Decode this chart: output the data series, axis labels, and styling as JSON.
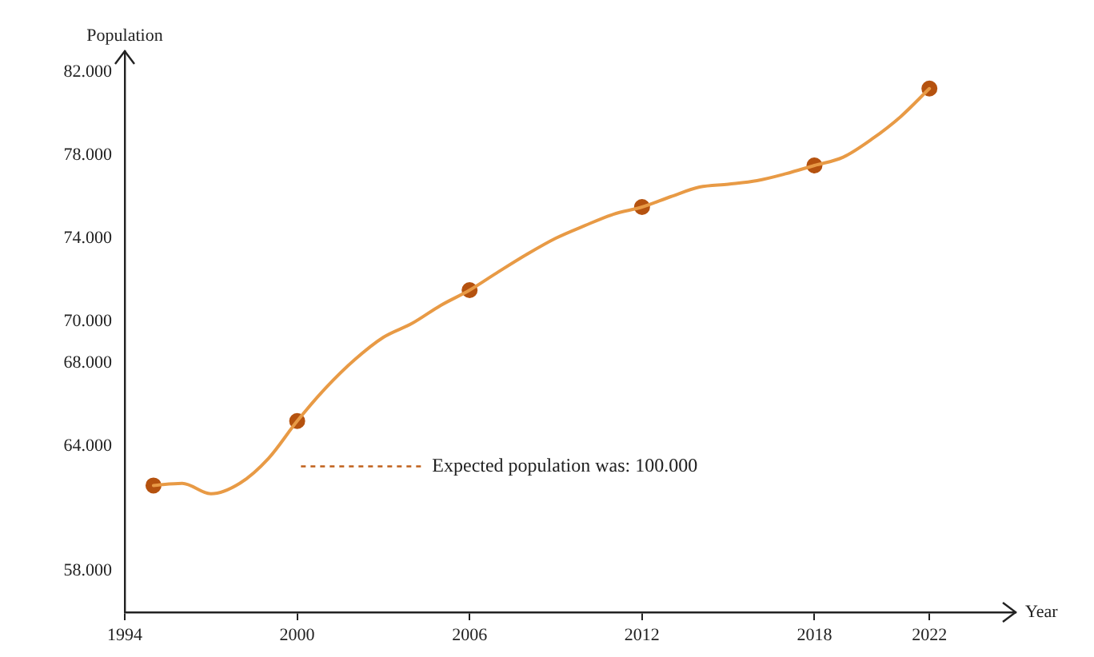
{
  "chart_data": {
    "type": "line",
    "xlabel": "Year",
    "ylabel": "Population",
    "xlim": [
      1994,
      2025
    ],
    "xticks": [
      1994,
      2000,
      2006,
      2012,
      2018,
      2022
    ],
    "ylim": [
      56000,
      83000
    ],
    "yticks": [
      {
        "value": 58000,
        "label": "58.000"
      },
      {
        "value": 64000,
        "label": "64.000"
      },
      {
        "value": 68000,
        "label": "68.000"
      },
      {
        "value": 70000,
        "label": "70.000"
      },
      {
        "value": 74000,
        "label": "74.000"
      },
      {
        "value": 78000,
        "label": "78.000"
      },
      {
        "value": 82000,
        "label": "82.000"
      }
    ],
    "grid": false,
    "legend": false,
    "series": [
      {
        "color": "#e89a45",
        "marker": "none",
        "x": [
          1995,
          1996,
          1997,
          1998,
          1999,
          2000,
          2001,
          2002,
          2003,
          2004,
          2005,
          2006,
          2007,
          2008,
          2009,
          2010,
          2011,
          2012,
          2013,
          2014,
          2015,
          2016,
          2017,
          2018,
          2019,
          2020,
          2021,
          2022
        ],
        "values": [
          62100,
          62200,
          61700,
          62200,
          63400,
          65200,
          66800,
          68150,
          69230,
          69900,
          70770,
          71500,
          72380,
          73230,
          74000,
          74600,
          75150,
          75500,
          76000,
          76460,
          76600,
          76770,
          77100,
          77500,
          77900,
          78770,
          79850,
          81200
        ]
      },
      {
        "type": "scatter",
        "color": "#b5520f",
        "marker": "circle",
        "x": [
          1995,
          2000,
          2006,
          2012,
          2018,
          2022
        ],
        "values": [
          62100,
          65200,
          71500,
          75500,
          77500,
          81200
        ]
      }
    ],
    "annotations": [
      "Expected population was: 100.000"
    ]
  }
}
